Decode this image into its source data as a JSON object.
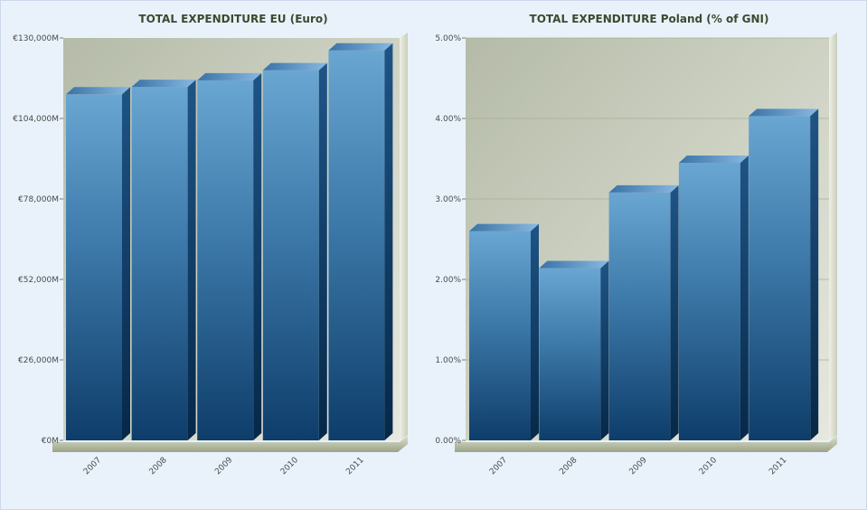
{
  "chart_data": [
    {
      "type": "bar",
      "title": "TOTAL EXPENDITURE EU (Euro)",
      "xlabel": "",
      "ylabel": "",
      "categories": [
        "2007",
        "2008",
        "2009",
        "2010",
        "2011"
      ],
      "values": [
        111800,
        114200,
        116300,
        119600,
        126000
      ],
      "ylim": [
        0,
        130000
      ],
      "yticks": [
        0,
        26000,
        52000,
        78000,
        104000,
        130000
      ],
      "ytick_labels": [
        "€0M",
        "€26,000M",
        "€52,000M",
        "€78,000M",
        "€104,000M",
        "€130,000M"
      ],
      "grid": false,
      "bar_color": "#3a78a8"
    },
    {
      "type": "bar",
      "title": "TOTAL EXPENDITURE Poland (% of GNI)",
      "xlabel": "",
      "ylabel": "",
      "categories": [
        "2007",
        "2008",
        "2009",
        "2010",
        "2011"
      ],
      "values": [
        2.6,
        2.14,
        3.08,
        3.45,
        4.03
      ],
      "ylim": [
        0,
        5
      ],
      "yticks": [
        0,
        1,
        2,
        3,
        4,
        5
      ],
      "ytick_labels": [
        "0.00%",
        "1.00%",
        "2.00%",
        "3.00%",
        "4.00%",
        "5.00%"
      ],
      "grid": true,
      "bar_color": "#3a78a8"
    }
  ]
}
